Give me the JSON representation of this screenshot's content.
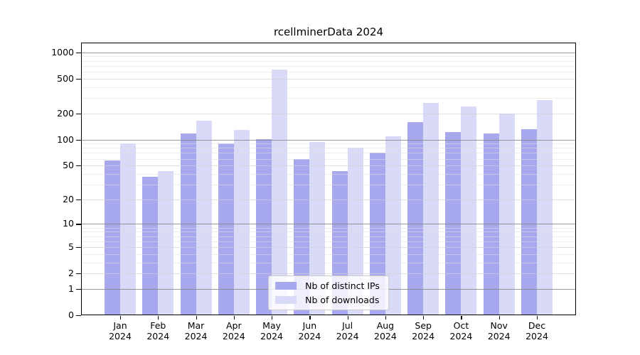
{
  "chart_data": {
    "type": "bar",
    "title": "rcellminerData 2024",
    "x_months": [
      "Jan",
      "Feb",
      "Mar",
      "Apr",
      "May",
      "Jun",
      "Jul",
      "Aug",
      "Sep",
      "Oct",
      "Nov",
      "Dec"
    ],
    "x_year": "2024",
    "series": [
      {
        "name": "Nb of distinct IPs",
        "color": "#a8a8ee",
        "values": [
          57,
          37,
          117,
          91,
          102,
          60,
          43,
          71,
          160,
          122,
          117,
          132
        ]
      },
      {
        "name": "Nb of downloads",
        "color": "#d9d9f8",
        "values": [
          90,
          43,
          165,
          130,
          640,
          93,
          81,
          110,
          265,
          240,
          199,
          282
        ]
      }
    ],
    "yticks": [
      0,
      1,
      2,
      5,
      10,
      20,
      50,
      100,
      200,
      500,
      1000
    ],
    "ylim": [
      0,
      1290
    ],
    "yscale": "log10(value+1)",
    "grid": "on",
    "legend_position": "inside-bottom-center"
  }
}
